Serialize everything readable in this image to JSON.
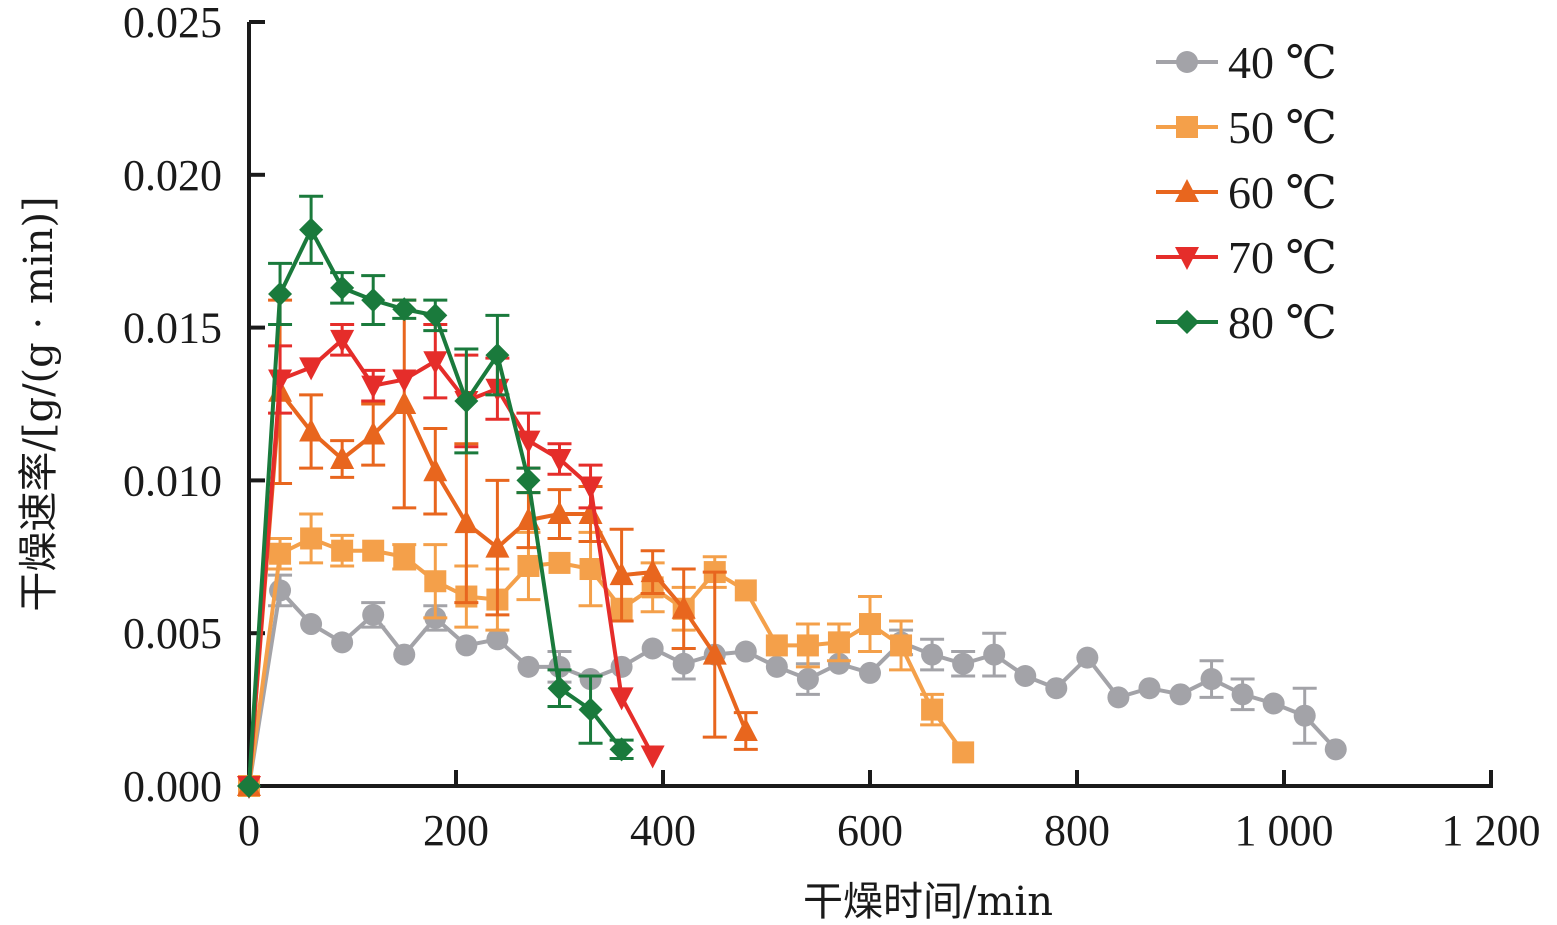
{
  "chart_data": {
    "type": "line",
    "title": "",
    "xlabel": "干燥时间/min",
    "ylabel": "干燥速率/[g/(g · min)]",
    "xlim": [
      0,
      1200
    ],
    "ylim": [
      0,
      0.025
    ],
    "x_ticks": [
      0,
      200,
      400,
      600,
      800,
      1000,
      1200
    ],
    "x_tick_labels": [
      "0",
      "200",
      "400",
      "600",
      "800",
      "1 000",
      "1 200"
    ],
    "y_ticks": [
      0,
      0.005,
      0.01,
      0.015,
      0.02,
      0.025
    ],
    "y_tick_labels": [
      "0.000",
      "0.005",
      "0.010",
      "0.015",
      "0.020",
      "0.025"
    ],
    "grid": false,
    "legend_position": "top-right",
    "error_bars": true,
    "series": [
      {
        "name": "40 ℃",
        "color": "#a3a3a8",
        "marker": "circle",
        "x": [
          0,
          30,
          60,
          90,
          120,
          150,
          180,
          210,
          240,
          270,
          300,
          330,
          360,
          390,
          420,
          450,
          480,
          510,
          540,
          570,
          600,
          630,
          660,
          690,
          720,
          750,
          780,
          810,
          840,
          870,
          900,
          930,
          960,
          990,
          1020,
          1050
        ],
        "y": [
          0,
          0.0064,
          0.0053,
          0.0047,
          0.0056,
          0.0043,
          0.0055,
          0.0046,
          0.0048,
          0.0039,
          0.0039,
          0.0035,
          0.0039,
          0.0045,
          0.004,
          0.0043,
          0.0044,
          0.0039,
          0.0035,
          0.004,
          0.0037,
          0.0047,
          0.0043,
          0.004,
          0.0043,
          0.0036,
          0.0032,
          0.0042,
          0.0029,
          0.0032,
          0.003,
          0.0035,
          0.003,
          0.0027,
          0.0023,
          0.0012
        ],
        "err": [
          0,
          0.0005,
          0,
          0,
          0.0004,
          0,
          0.0004,
          0,
          0,
          0,
          0.0005,
          0,
          0,
          0,
          0.0005,
          0,
          0,
          0,
          0.0005,
          0,
          0,
          0.0004,
          0.0005,
          0.0004,
          0.0007,
          0,
          0,
          0,
          0,
          0,
          0,
          0.0006,
          0.0005,
          0,
          0.0009,
          0
        ]
      },
      {
        "name": "50 ℃",
        "color": "#f4a04a",
        "marker": "square",
        "x": [
          0,
          30,
          60,
          90,
          120,
          150,
          180,
          210,
          240,
          270,
          300,
          330,
          360,
          390,
          420,
          450,
          480,
          510,
          540,
          570,
          600,
          630,
          660,
          690
        ],
        "y": [
          0,
          0.0076,
          0.0081,
          0.0077,
          0.0077,
          0.0075,
          0.0067,
          0.0062,
          0.0061,
          0.0072,
          0.0073,
          0.0071,
          0.0058,
          0.0065,
          0.0058,
          0.007,
          0.0064,
          0.0046,
          0.0046,
          0.0047,
          0.0053,
          0.0046,
          0.0025,
          0.0011
        ],
        "err": [
          0,
          0.0005,
          0.0008,
          0.0005,
          0,
          0.0004,
          0.0012,
          0.001,
          0.001,
          0.0011,
          0,
          0.0012,
          0,
          0.0008,
          0.0007,
          0.0005,
          0,
          0,
          0.0007,
          0.0006,
          0.0009,
          0.0008,
          0.0005,
          0
        ]
      },
      {
        "name": "60 ℃",
        "color": "#e8661e",
        "marker": "triangle-up",
        "x": [
          0,
          30,
          60,
          90,
          120,
          150,
          180,
          210,
          240,
          270,
          300,
          330,
          360,
          390,
          420,
          450,
          480
        ],
        "y": [
          0,
          0.0129,
          0.0116,
          0.0107,
          0.0115,
          0.0125,
          0.0103,
          0.0086,
          0.0078,
          0.0087,
          0.0089,
          0.0089,
          0.0069,
          0.007,
          0.0058,
          0.0043,
          0.0018
        ],
        "err": [
          0,
          0.003,
          0.0012,
          0.0006,
          0.001,
          0.0034,
          0.0014,
          0.0026,
          0.0022,
          0.0009,
          0.0008,
          0.0009,
          0.0015,
          0.0007,
          0.0013,
          0.0027,
          0.0006
        ]
      },
      {
        "name": "70 ℃",
        "color": "#e52d2a",
        "marker": "triangle-down",
        "x": [
          0,
          30,
          60,
          90,
          120,
          150,
          180,
          210,
          240,
          270,
          300,
          330,
          360,
          390
        ],
        "y": [
          0,
          0.0133,
          0.0137,
          0.0146,
          0.0131,
          0.0133,
          0.0139,
          0.0126,
          0.013,
          0.0113,
          0.0107,
          0.0098,
          0.0029,
          0.001
        ],
        "err": [
          0,
          0.0011,
          0,
          0.0005,
          0.0005,
          0,
          0.0012,
          0.0015,
          0.001,
          0.0009,
          0.0005,
          0.0007,
          0,
          0
        ]
      },
      {
        "name": "80 ℃",
        "color": "#1a7a3c",
        "marker": "diamond",
        "x": [
          0,
          30,
          60,
          90,
          120,
          150,
          180,
          210,
          240,
          270,
          300,
          330,
          360
        ],
        "y": [
          0,
          0.0161,
          0.0182,
          0.0163,
          0.0159,
          0.0156,
          0.0154,
          0.0126,
          0.0141,
          0.01,
          0.0032,
          0.0025,
          0.0012
        ],
        "err": [
          0,
          0.001,
          0.0011,
          0.0005,
          0.0008,
          0.0003,
          0.0005,
          0.0017,
          0.0013,
          0.0004,
          0.0006,
          0.0011,
          0.0003
        ]
      }
    ]
  }
}
